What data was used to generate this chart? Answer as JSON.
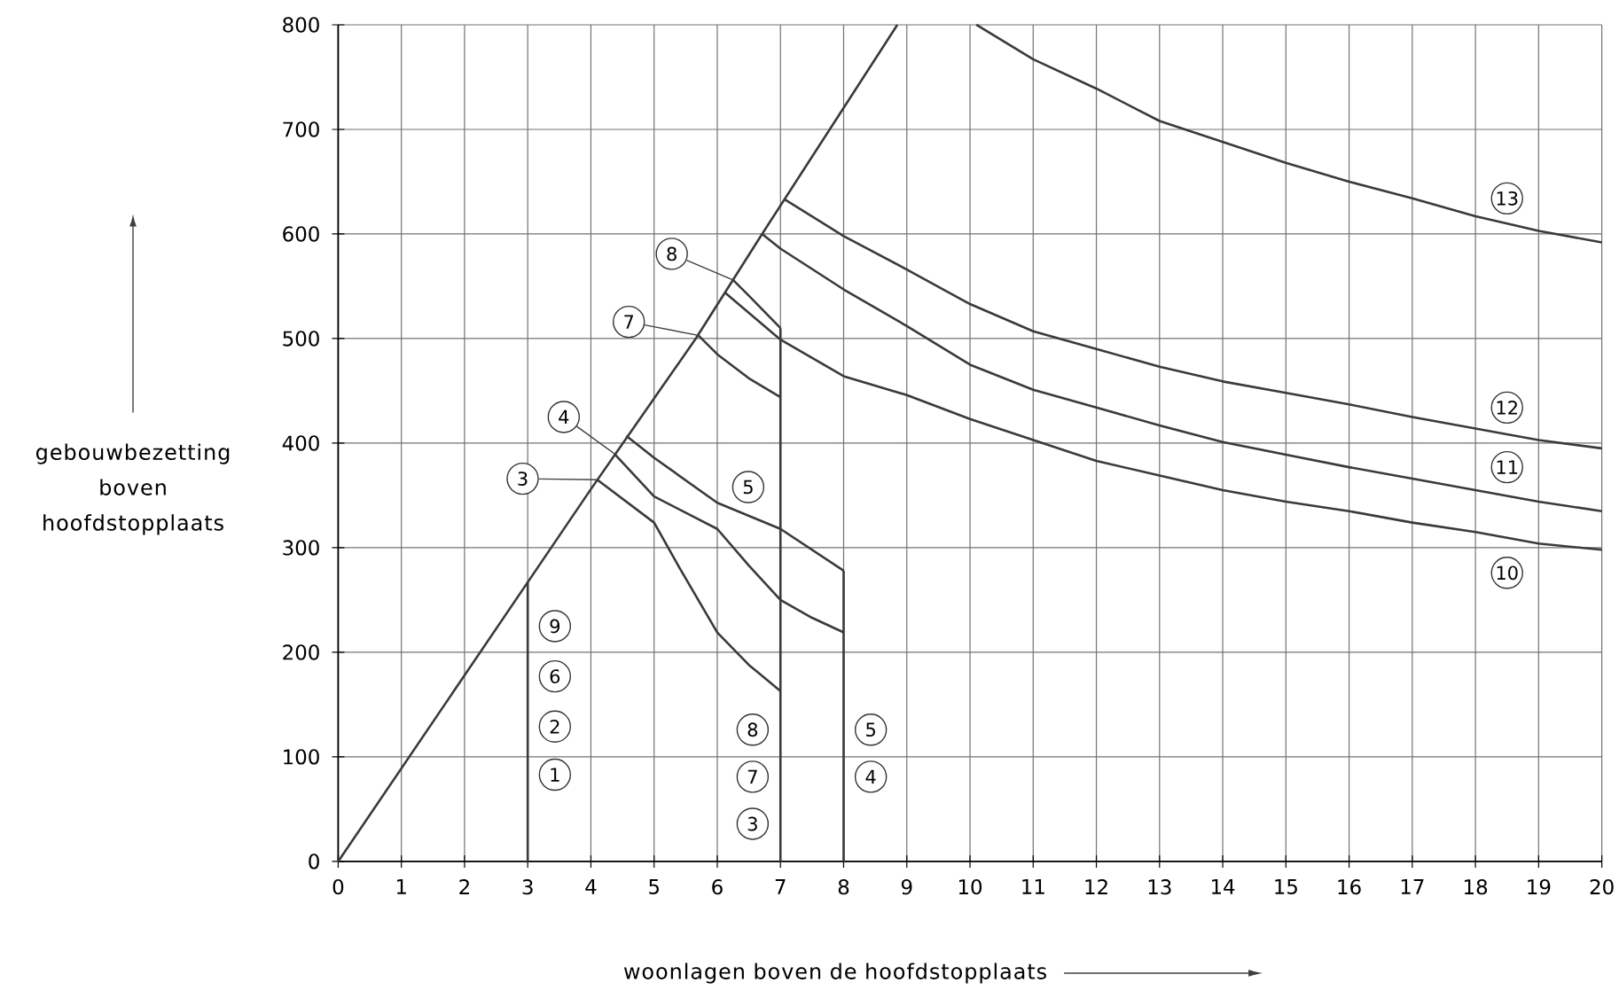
{
  "chart_data": {
    "type": "line",
    "xlabel": "woonlagen boven de hoofdstopplaats",
    "ylabel": "gebouwbezetting boven hoofdstopplaats",
    "xlim": [
      0,
      20
    ],
    "ylim": [
      0,
      800
    ],
    "xticks": [
      0,
      1,
      2,
      3,
      4,
      5,
      6,
      7,
      8,
      9,
      10,
      11,
      12,
      13,
      14,
      15,
      16,
      17,
      18,
      19,
      20
    ],
    "yticks": [
      0,
      100,
      200,
      300,
      400,
      500,
      600,
      700,
      800
    ],
    "grid": true,
    "series": [
      {
        "color": "#3a3a3a",
        "x": [
          0,
          4,
          5.66,
          6.71,
          8.85
        ],
        "values": [
          0,
          356,
          500,
          600,
          800
        ]
      },
      {
        "color": "#3a3a3a",
        "x": [
          3,
          3
        ],
        "values": [
          0,
          267
        ]
      },
      {
        "color": "#3a3a3a",
        "x": [
          7,
          7
        ],
        "values": [
          0,
          510
        ]
      },
      {
        "color": "#3a3a3a",
        "x": [
          8,
          8
        ],
        "values": [
          0,
          278
        ]
      },
      {
        "color": "#3a3a3a",
        "x": [
          4.1,
          5,
          5.4,
          6,
          6.5,
          7
        ],
        "values": [
          365,
          324,
          281,
          219,
          188,
          163
        ]
      },
      {
        "color": "#3a3a3a",
        "x": [
          4.37,
          5,
          6,
          6.5,
          7,
          7.5,
          8
        ],
        "values": [
          390,
          349,
          318,
          283,
          250,
          233,
          219
        ]
      },
      {
        "color": "#3a3a3a",
        "x": [
          4.56,
          5,
          6,
          7,
          7.5,
          8
        ],
        "values": [
          407,
          386,
          343,
          318,
          298,
          278
        ]
      },
      {
        "color": "#3a3a3a",
        "x": [
          5.7,
          6,
          6.5,
          7
        ],
        "values": [
          503,
          485,
          462,
          444
        ]
      },
      {
        "color": "#3a3a3a",
        "x": [
          6.25,
          6.5,
          7
        ],
        "values": [
          556,
          541,
          510
        ]
      },
      {
        "color": "#3a3a3a",
        "x": [
          6.12,
          7,
          8,
          9,
          10,
          11,
          12,
          13,
          14,
          15,
          16,
          17,
          18,
          19,
          20
        ],
        "values": [
          544,
          499,
          464,
          446,
          423,
          403,
          383,
          369,
          355,
          344,
          335,
          324,
          315,
          304,
          298
        ]
      },
      {
        "color": "#3a3a3a",
        "x": [
          6.71,
          7,
          8,
          9,
          10,
          11,
          12,
          13,
          14,
          15,
          16,
          17,
          18,
          19,
          20
        ],
        "values": [
          600,
          586,
          547,
          512,
          475,
          451,
          434,
          417,
          401,
          389,
          377,
          366,
          355,
          344,
          335
        ]
      },
      {
        "color": "#3a3a3a",
        "x": [
          7.07,
          8,
          9,
          10,
          11,
          12,
          13,
          14,
          15,
          16,
          17,
          18,
          19,
          20
        ],
        "values": [
          633,
          598,
          566,
          533,
          507,
          490,
          473,
          459,
          448,
          437,
          425,
          414,
          403,
          395
        ]
      },
      {
        "color": "#3a3a3a",
        "x": [
          10.1,
          11,
          12,
          13,
          14,
          15,
          16,
          17,
          18,
          19,
          20
        ],
        "values": [
          800,
          767,
          739,
          708,
          688,
          668,
          650,
          634,
          617,
          603,
          592
        ]
      }
    ],
    "annotations": [
      {
        "text": "8",
        "x": 5.28,
        "y": 581
      },
      {
        "text": "7",
        "x": 4.6,
        "y": 516
      },
      {
        "text": "4",
        "x": 3.57,
        "y": 425
      },
      {
        "text": "3",
        "x": 2.92,
        "y": 366
      },
      {
        "text": "5",
        "x": 6.49,
        "y": 358
      },
      {
        "text": "9",
        "x": 3.43,
        "y": 225
      },
      {
        "text": "6",
        "x": 3.43,
        "y": 177
      },
      {
        "text": "2",
        "x": 3.43,
        "y": 129
      },
      {
        "text": "1",
        "x": 3.43,
        "y": 83
      },
      {
        "text": "8",
        "x": 6.56,
        "y": 126
      },
      {
        "text": "7",
        "x": 6.56,
        "y": 81
      },
      {
        "text": "3",
        "x": 6.56,
        "y": 36
      },
      {
        "text": "5",
        "x": 8.43,
        "y": 126
      },
      {
        "text": "4",
        "x": 8.43,
        "y": 81
      },
      {
        "text": "13",
        "x": 18.5,
        "y": 634
      },
      {
        "text": "12",
        "x": 18.5,
        "y": 434
      },
      {
        "text": "11",
        "x": 18.5,
        "y": 377
      },
      {
        "text": "10",
        "x": 18.5,
        "y": 276
      }
    ]
  }
}
